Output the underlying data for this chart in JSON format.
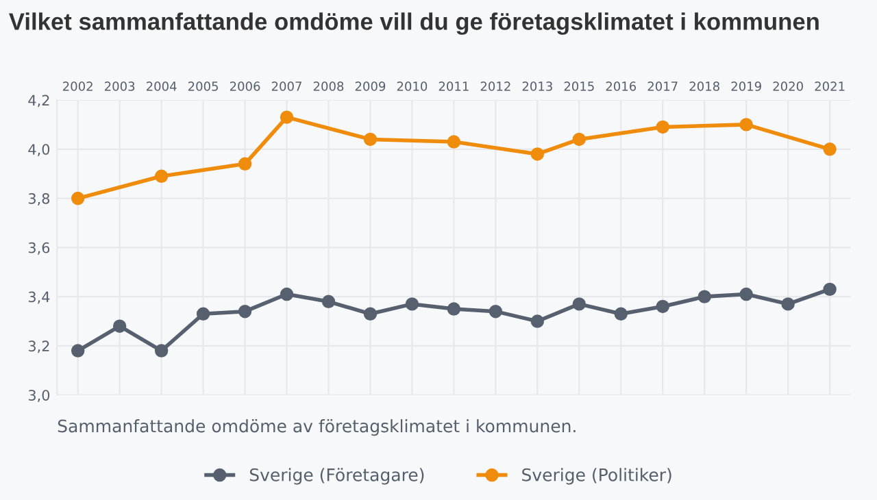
{
  "chart_data": {
    "type": "line",
    "title": "Vilket sammanfattande omdöme vill du ge företagsklimatet i kommunen",
    "categories": [
      "2002",
      "2003",
      "2004",
      "2005",
      "2006",
      "2007",
      "2008",
      "2009",
      "2010",
      "2011",
      "2012",
      "2013",
      "2015",
      "2016",
      "2017",
      "2018",
      "2019",
      "2020",
      "2021"
    ],
    "series": [
      {
        "name": "Sverige (Företagare)",
        "color": "#56606e",
        "values": [
          3.18,
          3.28,
          3.18,
          3.33,
          3.34,
          3.41,
          3.38,
          3.33,
          3.37,
          3.35,
          3.34,
          3.3,
          3.37,
          3.33,
          3.36,
          3.4,
          3.41,
          3.37,
          3.43
        ]
      },
      {
        "name": "Sverige (Politiker)",
        "color": "#ef8c0c",
        "values": [
          3.8,
          null,
          3.89,
          null,
          3.94,
          4.13,
          null,
          4.04,
          null,
          4.03,
          null,
          3.98,
          4.04,
          null,
          4.09,
          null,
          4.1,
          null,
          4.0
        ]
      }
    ],
    "ylim": [
      3.0,
      4.2
    ],
    "yticks": [
      {
        "value": 3.0,
        "label": "3,0"
      },
      {
        "value": 3.2,
        "label": "3,2"
      },
      {
        "value": 3.4,
        "label": "3,4"
      },
      {
        "value": 3.6,
        "label": "3,6"
      },
      {
        "value": 3.8,
        "label": "3,8"
      },
      {
        "value": 4.0,
        "label": "4,0"
      },
      {
        "value": 4.2,
        "label": "4,2"
      }
    ],
    "annotations": [
      "Sammanfattande omdöme av företagsklimatet i kommunen."
    ],
    "grid": true,
    "legend": "bottom",
    "marker": "circle",
    "line_style": "solid"
  }
}
